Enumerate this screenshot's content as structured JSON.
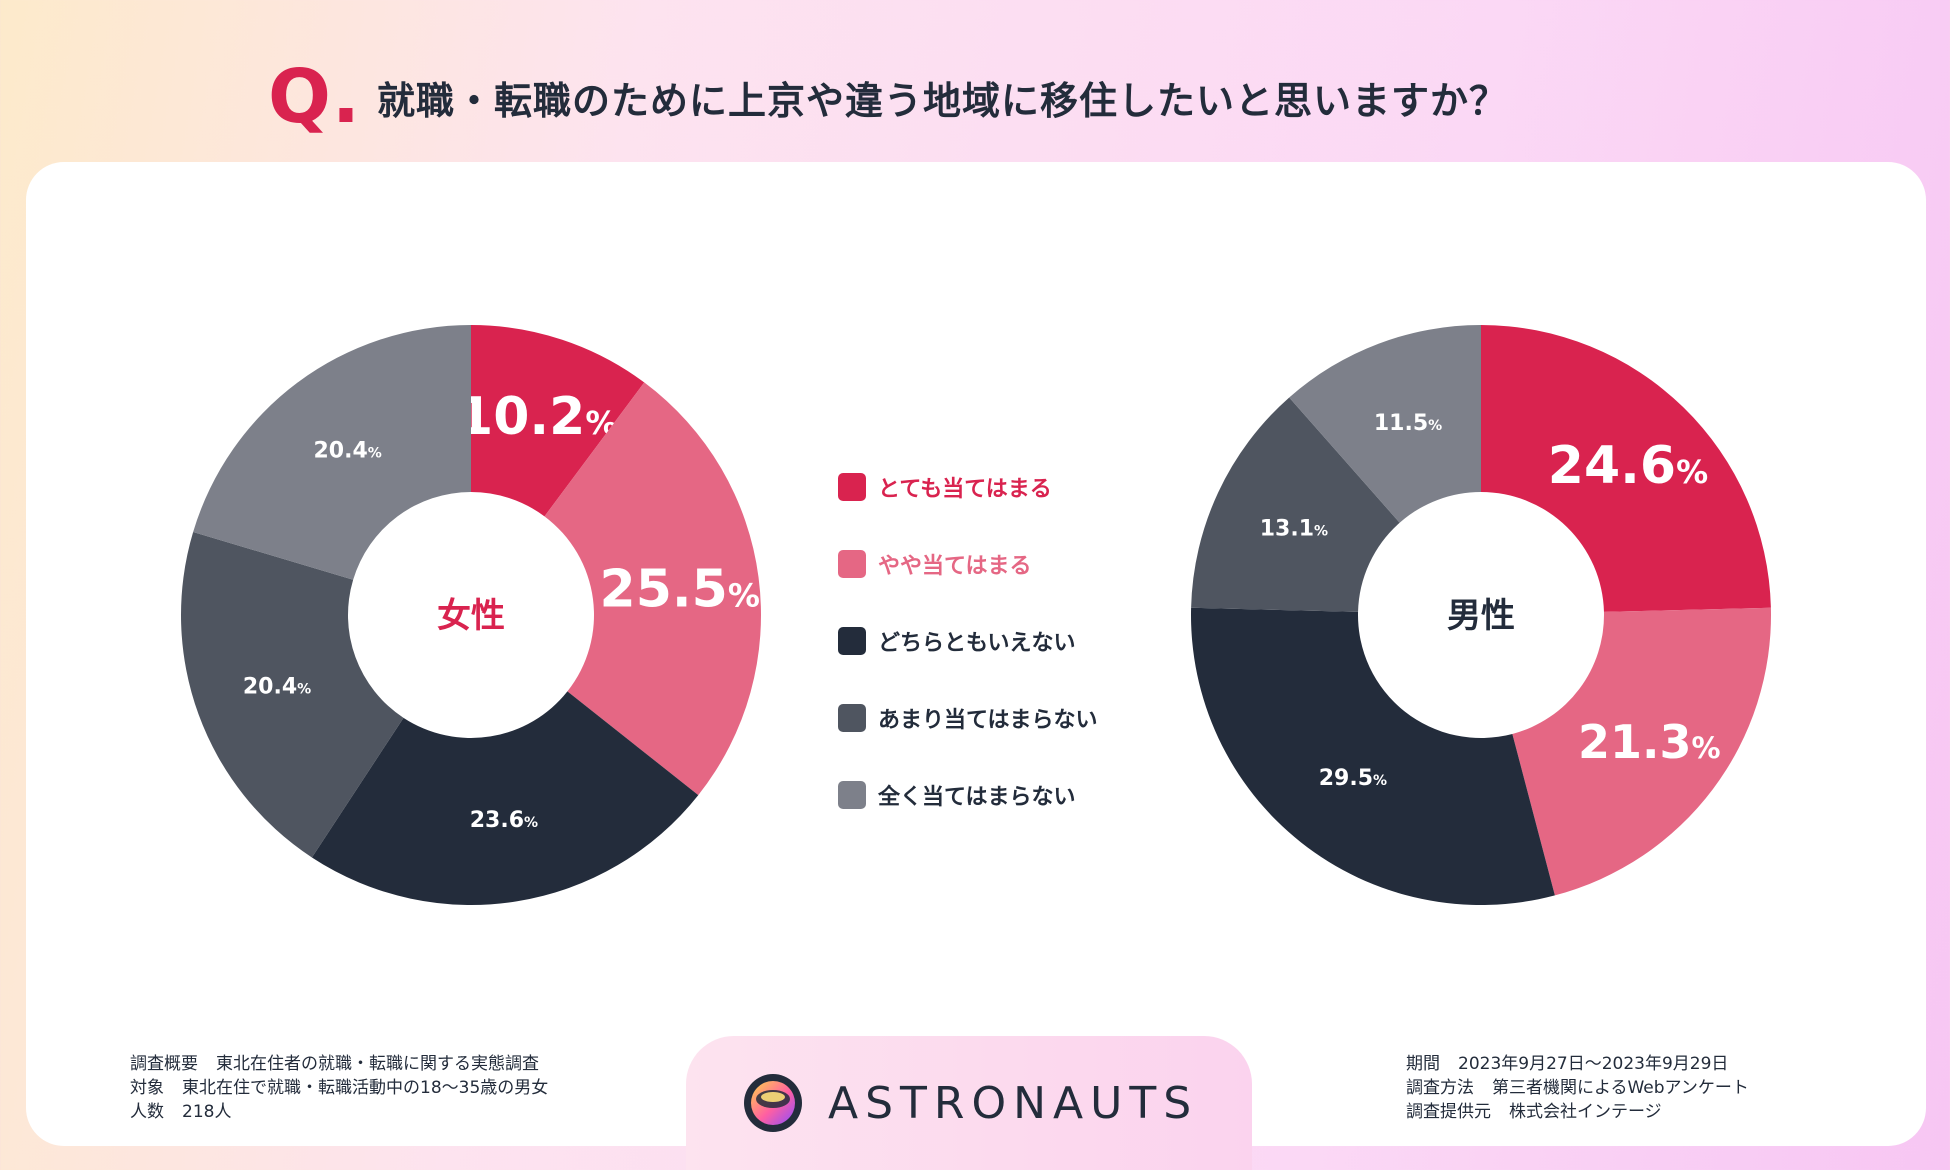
{
  "title": {
    "mark": "Q.",
    "text": "就職・転職のために上京や違う地域に移住したいと思いますか？"
  },
  "colors": {
    "very": "#d9234f",
    "somewhat": "#e56784",
    "neutral": "#232c3b",
    "not_much": "#4f5560",
    "not_at_all": "#7d808a"
  },
  "chart_data": [
    {
      "type": "pie",
      "donut": true,
      "center_label": "女性",
      "center_color": "#d9234f",
      "categories": [
        "とても当てはまる",
        "やや当てはまる",
        "どちらともいえない",
        "あまり当てはまらない",
        "全く当てはまらない"
      ],
      "values": [
        10.2,
        25.5,
        23.6,
        20.4,
        20.4
      ],
      "labels": [
        "10.2",
        "25.5",
        "23.6",
        "20.4",
        "20.4"
      ],
      "unit": "%"
    },
    {
      "type": "pie",
      "donut": true,
      "center_label": "男性",
      "center_color": "#232c3b",
      "categories": [
        "とても当てはまる",
        "やや当てはまる",
        "どちらともいえない",
        "あまり当てはまらない",
        "全く当てはまらない"
      ],
      "values": [
        24.6,
        21.3,
        29.5,
        13.1,
        11.5
      ],
      "labels": [
        "24.6",
        "21.3",
        "29.5",
        "13.1",
        "11.5"
      ],
      "unit": "%"
    }
  ],
  "legend": [
    {
      "label": "とても当てはまる",
      "color": "#d9234f",
      "text_color": "#d9234f"
    },
    {
      "label": "やや当てはまる",
      "color": "#e56784",
      "text_color": "#e56784"
    },
    {
      "label": "どちらともいえない",
      "color": "#232c3b",
      "text_color": "#232c3b"
    },
    {
      "label": "あまり当てはまらない",
      "color": "#4f5560",
      "text_color": "#232c3b"
    },
    {
      "label": "全く当てはまらない",
      "color": "#7d808a",
      "text_color": "#232c3b"
    }
  ],
  "footer": {
    "logo_text": "ASTRONAUTS",
    "left": [
      {
        "key": "調査概要",
        "value": "東北在住者の就職・転職に関する実態調査"
      },
      {
        "key": "対象",
        "value": "東北在住で就職・転職活動中の18～35歳の男女"
      },
      {
        "key": "人数",
        "value": "218人"
      }
    ],
    "right": [
      {
        "key": "期間",
        "value": "2023年9月27日～2023年9月29日"
      },
      {
        "key": "調査方法",
        "value": "第三者機関によるWebアンケート"
      },
      {
        "key": "調査提供元",
        "value": "株式会社インテージ"
      }
    ]
  }
}
